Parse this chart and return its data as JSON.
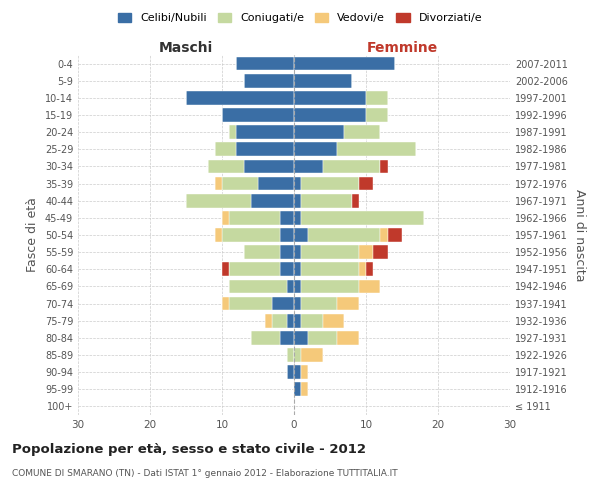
{
  "age_groups": [
    "100+",
    "95-99",
    "90-94",
    "85-89",
    "80-84",
    "75-79",
    "70-74",
    "65-69",
    "60-64",
    "55-59",
    "50-54",
    "45-49",
    "40-44",
    "35-39",
    "30-34",
    "25-29",
    "20-24",
    "15-19",
    "10-14",
    "5-9",
    "0-4"
  ],
  "birth_years": [
    "≤ 1911",
    "1912-1916",
    "1917-1921",
    "1922-1926",
    "1927-1931",
    "1932-1936",
    "1937-1941",
    "1942-1946",
    "1947-1951",
    "1952-1956",
    "1957-1961",
    "1962-1966",
    "1967-1971",
    "1972-1976",
    "1977-1981",
    "1982-1986",
    "1987-1991",
    "1992-1996",
    "1997-2001",
    "2002-2006",
    "2007-2011"
  ],
  "male": {
    "celibi": [
      0,
      0,
      1,
      0,
      2,
      1,
      3,
      1,
      2,
      2,
      2,
      2,
      6,
      5,
      7,
      8,
      8,
      10,
      15,
      7,
      8
    ],
    "coniugati": [
      0,
      0,
      0,
      1,
      4,
      2,
      6,
      8,
      7,
      5,
      8,
      7,
      9,
      5,
      5,
      3,
      1,
      0,
      0,
      0,
      0
    ],
    "vedovi": [
      0,
      0,
      0,
      0,
      0,
      1,
      1,
      0,
      0,
      0,
      1,
      1,
      0,
      1,
      0,
      0,
      0,
      0,
      0,
      0,
      0
    ],
    "divorziati": [
      0,
      0,
      0,
      0,
      0,
      0,
      0,
      0,
      1,
      0,
      0,
      0,
      0,
      0,
      0,
      0,
      0,
      0,
      0,
      0,
      0
    ]
  },
  "female": {
    "nubili": [
      0,
      1,
      1,
      0,
      2,
      1,
      1,
      1,
      1,
      1,
      2,
      1,
      1,
      1,
      4,
      6,
      7,
      10,
      10,
      8,
      14
    ],
    "coniugate": [
      0,
      0,
      0,
      1,
      4,
      3,
      5,
      8,
      8,
      8,
      10,
      17,
      7,
      8,
      8,
      11,
      5,
      3,
      3,
      0,
      0
    ],
    "vedove": [
      0,
      1,
      1,
      3,
      3,
      3,
      3,
      3,
      1,
      2,
      1,
      0,
      0,
      0,
      0,
      0,
      0,
      0,
      0,
      0,
      0
    ],
    "divorziate": [
      0,
      0,
      0,
      0,
      0,
      0,
      0,
      0,
      1,
      2,
      2,
      0,
      1,
      2,
      1,
      0,
      0,
      0,
      0,
      0,
      0
    ]
  },
  "colors": {
    "celibi_nubili": "#3a6ea5",
    "coniugati": "#c5d9a0",
    "vedovi": "#f5c97a",
    "divorziati": "#c0392b"
  },
  "xlim": 30,
  "title": "Popolazione per età, sesso e stato civile - 2012",
  "subtitle": "COMUNE DI SMARANO (TN) - Dati ISTAT 1° gennaio 2012 - Elaborazione TUTTITALIA.IT",
  "xlabel_left": "Maschi",
  "xlabel_right": "Femmine",
  "ylabel_left": "Fasce di età",
  "ylabel_right": "Anni di nascita",
  "legend_labels": [
    "Celibi/Nubili",
    "Coniugati/e",
    "Vedovi/e",
    "Divorziati/e"
  ],
  "bg_color": "#ffffff",
  "grid_color": "#cccccc"
}
